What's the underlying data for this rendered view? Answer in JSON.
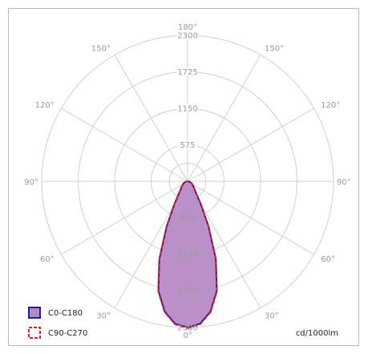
{
  "chart_data": {
    "type": "polar",
    "title": "",
    "unit_label": "cd/1000lm",
    "radial_ticks": [
      575,
      1150,
      1725,
      2300
    ],
    "r_max": 2300,
    "angle_labels": [
      {
        "text": "180°",
        "angle": 180
      },
      {
        "text": "150°",
        "angle": 150
      },
      {
        "text": "150°",
        "angle": -150
      },
      {
        "text": "120°",
        "angle": 120
      },
      {
        "text": "120°",
        "angle": -120
      },
      {
        "text": "90°",
        "angle": 90
      },
      {
        "text": "90°",
        "angle": -90
      },
      {
        "text": "60°",
        "angle": 60
      },
      {
        "text": "60°",
        "angle": -60
      },
      {
        "text": "30°",
        "angle": 30
      },
      {
        "text": "30°",
        "angle": -30
      },
      {
        "text": "0°",
        "angle": 0
      }
    ],
    "grid": true,
    "legend_position": "bottom-left",
    "series": [
      {
        "name": "C0-C180",
        "stroke": "#1c1cb0",
        "fill": "#b58ac4",
        "dashed": false,
        "angles": [
          0,
          5,
          10,
          15,
          20,
          25,
          30,
          35,
          40,
          50,
          60,
          70,
          80,
          90
        ],
        "values": [
          2300,
          2250,
          2080,
          1780,
          1300,
          780,
          420,
          250,
          175,
          120,
          85,
          55,
          30,
          10
        ]
      },
      {
        "name": "C90-C270",
        "stroke": "#e02020",
        "fill": "none",
        "dashed": true,
        "angles": [
          0,
          5,
          10,
          15,
          20,
          25,
          30,
          35,
          40,
          50,
          60,
          70,
          80,
          90
        ],
        "values": [
          2310,
          2260,
          2090,
          1790,
          1310,
          785,
          425,
          252,
          176,
          121,
          85,
          55,
          30,
          10
        ]
      }
    ]
  }
}
